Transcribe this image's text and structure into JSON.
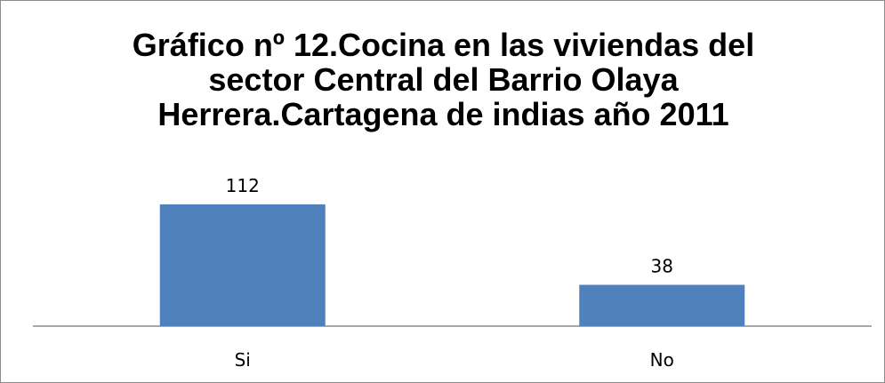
{
  "chart_data": {
    "type": "bar",
    "title": "Gráfico nº 12.Cocina en las viviendas del sector Central del Barrio Olaya Herrera.Cartagena de indias año 2011",
    "categories": [
      "Si",
      "No"
    ],
    "values": [
      112,
      38
    ],
    "data_labels": [
      "112",
      "38"
    ],
    "xlabel": "",
    "ylabel": "",
    "ylim": [
      0,
      112
    ],
    "grid": false,
    "legend": "none",
    "bar_color": "#4F81BD",
    "axis_color": "#8C8C8C"
  }
}
